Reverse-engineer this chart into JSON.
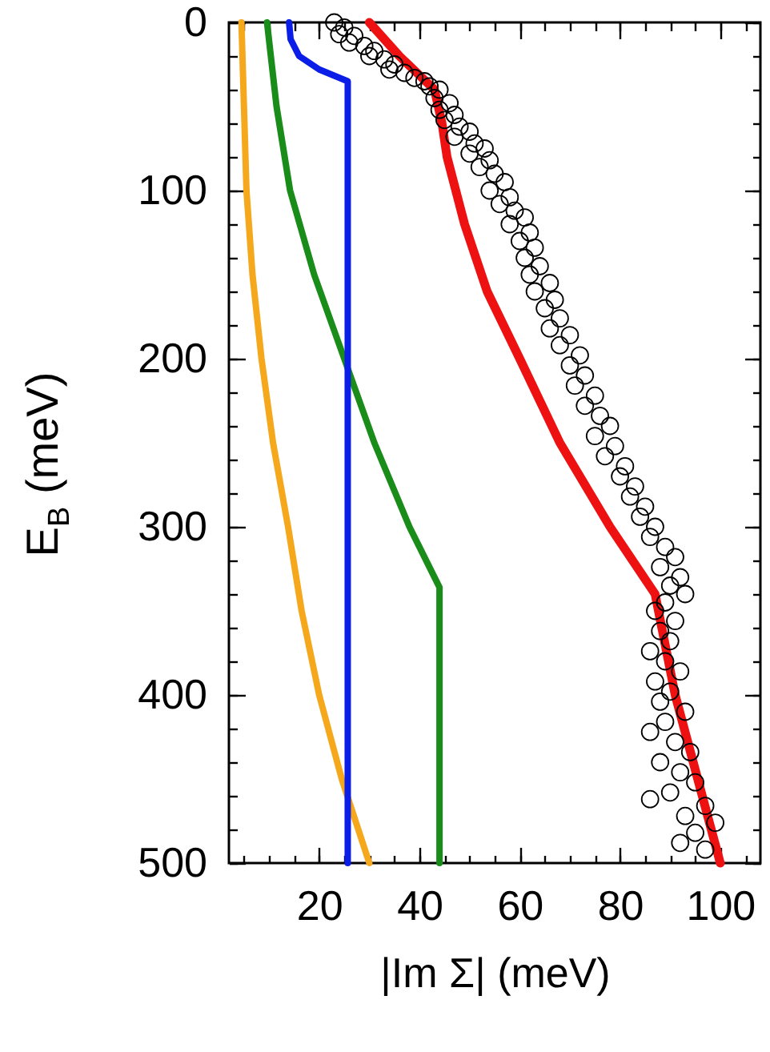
{
  "chart_data": {
    "type": "line",
    "xlabel": "|Im Σ| (meV)",
    "ylabel": "E$_{B}$ (meV)",
    "xlim": [
      2,
      108
    ],
    "ylim": [
      500,
      0
    ],
    "xticks": [
      20,
      40,
      60,
      80,
      100
    ],
    "yticks": [
      0,
      100,
      200,
      300,
      400,
      500
    ],
    "series": [
      {
        "color": "#f5a81c",
        "x": [
          4.5,
          5,
          5.5,
          6.7,
          8.5,
          10.8,
          13.8,
          16.5,
          20,
          24.5,
          30
        ],
        "values": [
          0,
          50,
          100,
          150,
          200,
          250,
          300,
          350,
          400,
          450,
          500
        ]
      },
      {
        "color": "#1a8c1a",
        "x": [
          9.6,
          11.5,
          14.2,
          19,
          25,
          31,
          38,
          44,
          44
        ],
        "values": [
          0,
          50,
          100,
          150,
          200,
          250,
          300,
          336,
          500
        ]
      },
      {
        "color": "#0a1ee8",
        "x": [
          14,
          14.3,
          16,
          20,
          25.7,
          25.7
        ],
        "values": [
          0,
          10,
          20,
          28,
          35,
          500
        ]
      },
      {
        "color": "#ee1111",
        "x": [
          30,
          36,
          43,
          44.5,
          45.5,
          49,
          53.5,
          60,
          68,
          78,
          87,
          91,
          95.5,
          100
        ],
        "values": [
          0,
          20,
          40,
          60,
          80,
          120,
          160,
          200,
          250,
          300,
          340,
          400,
          450,
          500
        ]
      },
      {
        "type": "scatter",
        "marker": "circle",
        "color": "#000000",
        "x": [
          23,
          25,
          24,
          27,
          26,
          29,
          31,
          30,
          33,
          35,
          34,
          37,
          39,
          41,
          42,
          44,
          43,
          46,
          44,
          47,
          45,
          48,
          50,
          47,
          51,
          53,
          50,
          54,
          52,
          55,
          57,
          54,
          58,
          56,
          59,
          61,
          58,
          62,
          60,
          63,
          61,
          64,
          62,
          66,
          63,
          67,
          65,
          68,
          66,
          70,
          68,
          72,
          70,
          73,
          71,
          75,
          73,
          76,
          78,
          75,
          79,
          77,
          81,
          80,
          83,
          82,
          85,
          84,
          87,
          86,
          89,
          91,
          88,
          92,
          90,
          93,
          89,
          87,
          91,
          88,
          90,
          86,
          89,
          92,
          87,
          90,
          88,
          93,
          89,
          86,
          91,
          94,
          88,
          92,
          95,
          90,
          86,
          97,
          93,
          99,
          95,
          92,
          97
        ],
        "values": [
          0,
          3,
          7,
          8,
          12,
          14,
          17,
          20,
          22,
          25,
          28,
          30,
          33,
          35,
          38,
          40,
          45,
          48,
          52,
          55,
          58,
          62,
          65,
          68,
          72,
          75,
          78,
          82,
          86,
          90,
          95,
          100,
          104,
          108,
          112,
          116,
          120,
          125,
          130,
          134,
          140,
          145,
          150,
          155,
          160,
          165,
          170,
          176,
          182,
          186,
          192,
          198,
          204,
          210,
          216,
          222,
          228,
          234,
          240,
          246,
          252,
          258,
          264,
          270,
          276,
          282,
          288,
          294,
          300,
          306,
          312,
          318,
          324,
          330,
          335,
          340,
          345,
          350,
          356,
          362,
          368,
          374,
          380,
          386,
          392,
          398,
          404,
          410,
          416,
          422,
          428,
          434,
          440,
          446,
          452,
          458,
          462,
          466,
          472,
          476,
          482,
          488,
          492
        ]
      }
    ]
  }
}
